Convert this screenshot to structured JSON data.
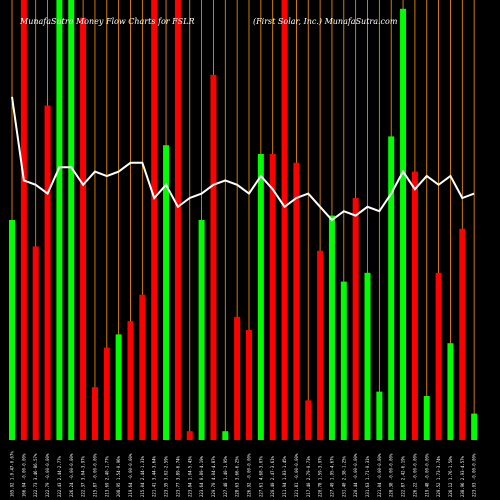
{
  "chart_data": {
    "type": "bar",
    "title_left": "MunafaSutra Money Flow Charts for FSLR",
    "title_right": "(First Solar, Inc.) MunafaSutra.com",
    "ylim": [
      0,
      100
    ],
    "colors": {
      "up": "#00ff00",
      "down": "#ff0000",
      "grid": "#ff9900",
      "line": "#ffffff",
      "background": "#000000"
    },
    "bars": [
      {
        "label": "165.92 1.0.47-0.67%",
        "value": 50,
        "color": "up"
      },
      {
        "label": "166.04 -0.00-0.00%",
        "value": 100,
        "color": "down"
      },
      {
        "label": "222.73 3.46-86.57%",
        "value": 44,
        "color": "down"
      },
      {
        "label": "222.79 -0.00-0.00%",
        "value": 76,
        "color": "down"
      },
      {
        "label": "222.43 2.44-2.77%",
        "value": 100,
        "color": "up"
      },
      {
        "label": "226.24 -0.00-0.00%",
        "value": 100,
        "color": "up"
      },
      {
        "label": "222.37 3.04-3.97%",
        "value": 96,
        "color": "down"
      },
      {
        "label": "215.87 -0.00-0.00%",
        "value": 12,
        "color": "down"
      },
      {
        "label": "213.69 2.40-1.77%",
        "value": 21,
        "color": "down"
      },
      {
        "label": "208.95 1.54-0.96%",
        "value": 24,
        "color": "up"
      },
      {
        "label": "219.64 -0.00-0.00%",
        "value": 27,
        "color": "down"
      },
      {
        "label": "215.04 2.44-1.31%",
        "value": 33,
        "color": "down"
      },
      {
        "label": "221.41 3.44-3.64%",
        "value": 100,
        "color": "down"
      },
      {
        "label": "223.35 3.02-2.59%",
        "value": 67,
        "color": "up"
      },
      {
        "label": "223.77 3.89-6.74%",
        "value": 100,
        "color": "down"
      },
      {
        "label": "223.84 1.04-5.43%",
        "value": 2,
        "color": "down"
      },
      {
        "label": "223.64 0.89-4.19%",
        "value": 50,
        "color": "up"
      },
      {
        "label": "229.70 4.04-4.87%",
        "value": 83,
        "color": "down"
      },
      {
        "label": "227.48 1.40-1.95%",
        "value": 2,
        "color": "up"
      },
      {
        "label": "228.63 3.66-6.25%",
        "value": 28,
        "color": "down"
      },
      {
        "label": "226.92 -0.00-0.00%",
        "value": 25,
        "color": "down"
      },
      {
        "label": "227.61 4.68-3.07%",
        "value": 65,
        "color": "up"
      },
      {
        "label": "220.40 2.47-3.61%",
        "value": 65,
        "color": "down"
      },
      {
        "label": "211.94 1.83-1.45%",
        "value": 100,
        "color": "down"
      },
      {
        "label": "221.81 -0.00-0.00%",
        "value": 63,
        "color": "down"
      },
      {
        "label": "217.40 2.79-0.73%",
        "value": 9,
        "color": "down"
      },
      {
        "label": "220.78 1.59-3.97%",
        "value": 43,
        "color": "down"
      },
      {
        "label": "227.49 1.95-4.67%",
        "value": 51,
        "color": "up"
      },
      {
        "label": "231.40 2.38-1.25%",
        "value": 36,
        "color": "up"
      },
      {
        "label": "220.44 -0.00-0.00%",
        "value": 55,
        "color": "down"
      },
      {
        "label": "231.63 1.71-0.31%",
        "value": 38,
        "color": "up"
      },
      {
        "label": "221.04 -0.00-0.00%",
        "value": 11,
        "color": "up"
      },
      {
        "label": "228.38 -0.00-0.00%",
        "value": 69,
        "color": "up"
      },
      {
        "label": "222.87 2.42-6.19%",
        "value": 98,
        "color": "up"
      },
      {
        "label": "226.22 -0.00-0.00%",
        "value": 61,
        "color": "down"
      },
      {
        "label": "219.48 -0.00-0.00%",
        "value": 10,
        "color": "up"
      },
      {
        "label": "229.52 1.73-3.74%",
        "value": 38,
        "color": "down"
      },
      {
        "label": "226.12 1.76-1.50%",
        "value": 22,
        "color": "up"
      },
      {
        "label": "238.96 2.93-4.57%",
        "value": 48,
        "color": "down"
      },
      {
        "label": "223.03 -0.00-0.00%",
        "value": 6,
        "color": "up"
      }
    ],
    "line_values": [
      78,
      59,
      58,
      56,
      62,
      62,
      58,
      61,
      60,
      61,
      63,
      63,
      55,
      58,
      53,
      55,
      56,
      58,
      59,
      58,
      56,
      60,
      57,
      53,
      55,
      56,
      53,
      50,
      52,
      51,
      53,
      52,
      56,
      61,
      57,
      60,
      58,
      60,
      55,
      56
    ]
  }
}
